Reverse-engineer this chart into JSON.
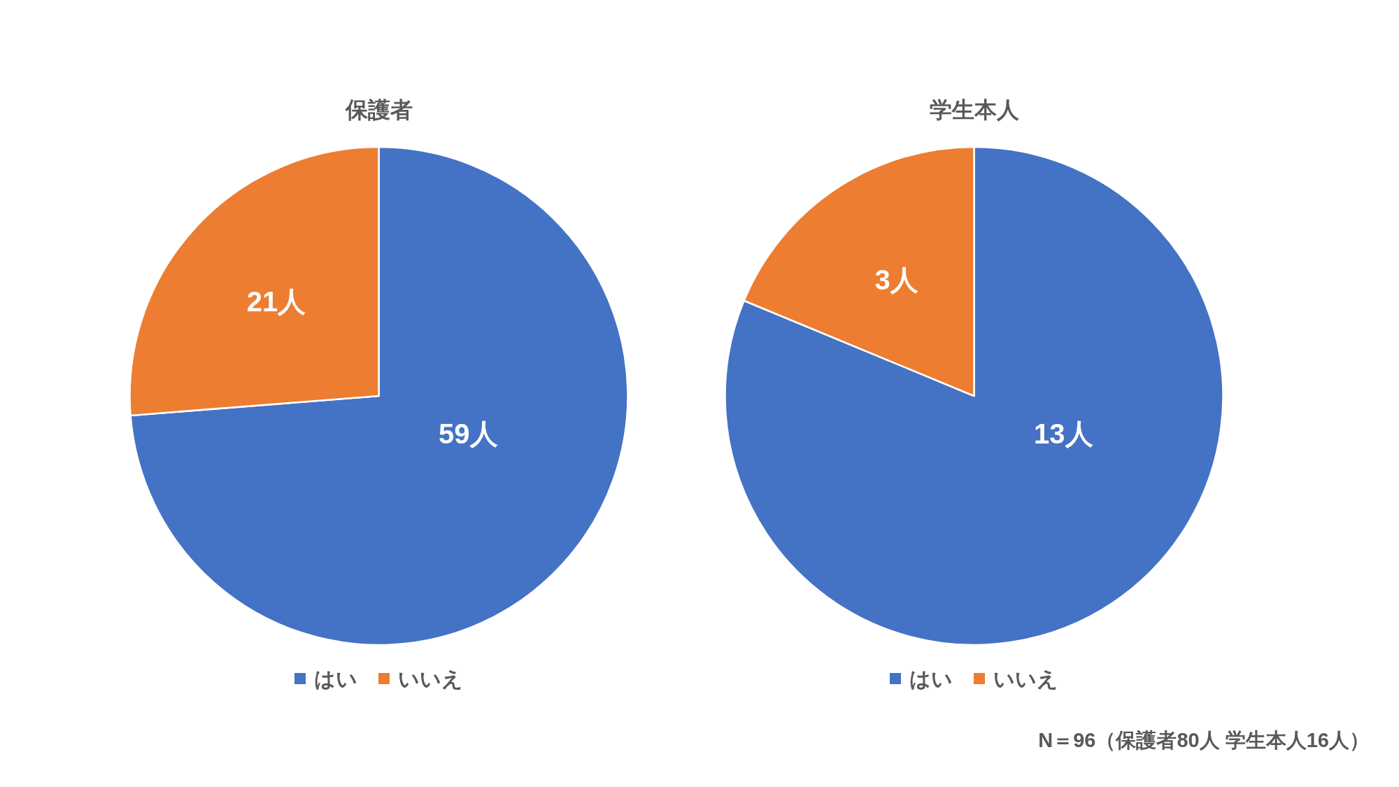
{
  "chart_data": [
    {
      "type": "pie",
      "title": "保護者",
      "categories": [
        "はい",
        "いいえ"
      ],
      "values": [
        59,
        21
      ],
      "colors": [
        "#4472c4",
        "#ed7d31"
      ],
      "value_labels": [
        "59人",
        "21人"
      ],
      "legend": "bottom"
    },
    {
      "type": "pie",
      "title": "学生本人",
      "categories": [
        "はい",
        "いいえ"
      ],
      "values": [
        13,
        3
      ],
      "colors": [
        "#4472c4",
        "#ed7d31"
      ],
      "value_labels": [
        "13人",
        "3人"
      ],
      "legend": "bottom",
      "annotations": [
        "N＝96（保護者80人 学生本人16人）"
      ]
    }
  ]
}
